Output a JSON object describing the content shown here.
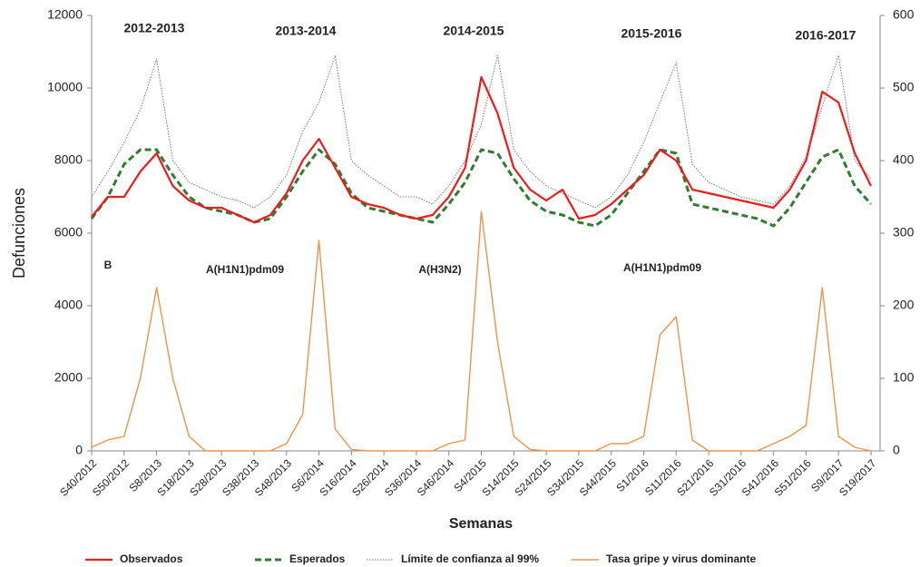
{
  "chart_data": {
    "type": "line",
    "x_label": "Semanas",
    "y_label": "Defunciones",
    "categories": [
      "S40/2012",
      null,
      "S50/2012",
      null,
      "S8/2013",
      null,
      "S18/2013",
      null,
      "S28/2013",
      null,
      "S38/2013",
      null,
      "S48/2013",
      null,
      "S6/2014",
      null,
      "S16/2014",
      null,
      "S26/2014",
      null,
      "S36/2014",
      null,
      "S46/2014",
      null,
      "S4/2015",
      null,
      "S14/2015",
      null,
      "S24/2015",
      null,
      "S34/2015",
      null,
      "S44/2015",
      null,
      "S1/2016",
      null,
      "S11/2016",
      null,
      "S21/2016",
      null,
      "S31/2016",
      null,
      "S41/2016",
      null,
      "S51/2016",
      null,
      "S9/2017",
      null,
      "S19/2017"
    ],
    "ylim": [
      0,
      12000
    ],
    "yticks": [
      0,
      2000,
      4000,
      6000,
      8000,
      10000,
      12000
    ],
    "y2lim": [
      0,
      600
    ],
    "y2ticks": [
      0,
      100,
      200,
      300,
      400,
      500,
      600
    ],
    "legend": "bottom",
    "annotations": [
      "2012-2013",
      "2013-2014",
      "2014-2015",
      "2015-2016",
      "2016-2017",
      "B",
      "A(H1N1)pdm09",
      "A(H3N2)",
      "A(H1N1)pdm09"
    ],
    "series": [
      {
        "name": "Observados",
        "color": "#ee1c1c",
        "style": "solid",
        "values": [
          6450,
          7000,
          7000,
          7700,
          8200,
          7300,
          6900,
          6700,
          6700,
          6500,
          6300,
          6500,
          7100,
          8000,
          8600,
          7800,
          7000,
          6800,
          6700,
          6500,
          6400,
          6500,
          7000,
          7800,
          10300,
          9300,
          7800,
          7200,
          6900,
          7200,
          6400,
          6500,
          6800,
          7200,
          7600,
          8300,
          8000,
          7200,
          7100,
          7000,
          6900,
          6800,
          6700,
          7200,
          8000,
          9900,
          9600,
          8200,
          7300
        ]
      },
      {
        "name": "Esperados",
        "color": "#2e7d32",
        "style": "dashed",
        "values": [
          6400,
          7000,
          7900,
          8300,
          8300,
          7600,
          7000,
          6700,
          6600,
          6500,
          6300,
          6400,
          7000,
          7700,
          8300,
          7900,
          7100,
          6700,
          6600,
          6500,
          6400,
          6300,
          6800,
          7400,
          8300,
          8200,
          7500,
          6900,
          6600,
          6500,
          6300,
          6200,
          6500,
          7100,
          7700,
          8300,
          8200,
          6800,
          6700,
          6600,
          6500,
          6400,
          6200,
          6700,
          7400,
          8100,
          8300,
          7300,
          6800
        ]
      },
      {
        "name": "Límite de confianza al 99%",
        "color": "#777777",
        "style": "dotted",
        "values": [
          7000,
          7700,
          8500,
          9400,
          10800,
          8000,
          7400,
          7200,
          7000,
          6900,
          6700,
          7000,
          7600,
          8800,
          9600,
          10900,
          8000,
          7600,
          7300,
          7000,
          7000,
          6800,
          7300,
          8000,
          9000,
          10900,
          8300,
          7700,
          7300,
          7100,
          6900,
          6700,
          7000,
          7600,
          8500,
          9600,
          10700,
          7900,
          7400,
          7200,
          7000,
          6900,
          6800,
          7300,
          8100,
          9500,
          10900,
          8000,
          7500
        ]
      },
      {
        "name": "Tasa gripe y virus dominante",
        "color": "#f0934a",
        "style": "thin",
        "axis": "y2",
        "values": [
          5,
          15,
          20,
          100,
          225,
          100,
          20,
          0,
          0,
          0,
          0,
          0,
          10,
          50,
          290,
          30,
          2,
          0,
          0,
          0,
          0,
          0,
          10,
          15,
          330,
          150,
          20,
          2,
          0,
          0,
          0,
          0,
          10,
          10,
          20,
          160,
          185,
          15,
          0,
          0,
          0,
          0,
          10,
          20,
          35,
          225,
          20,
          5,
          0
        ]
      }
    ]
  }
}
